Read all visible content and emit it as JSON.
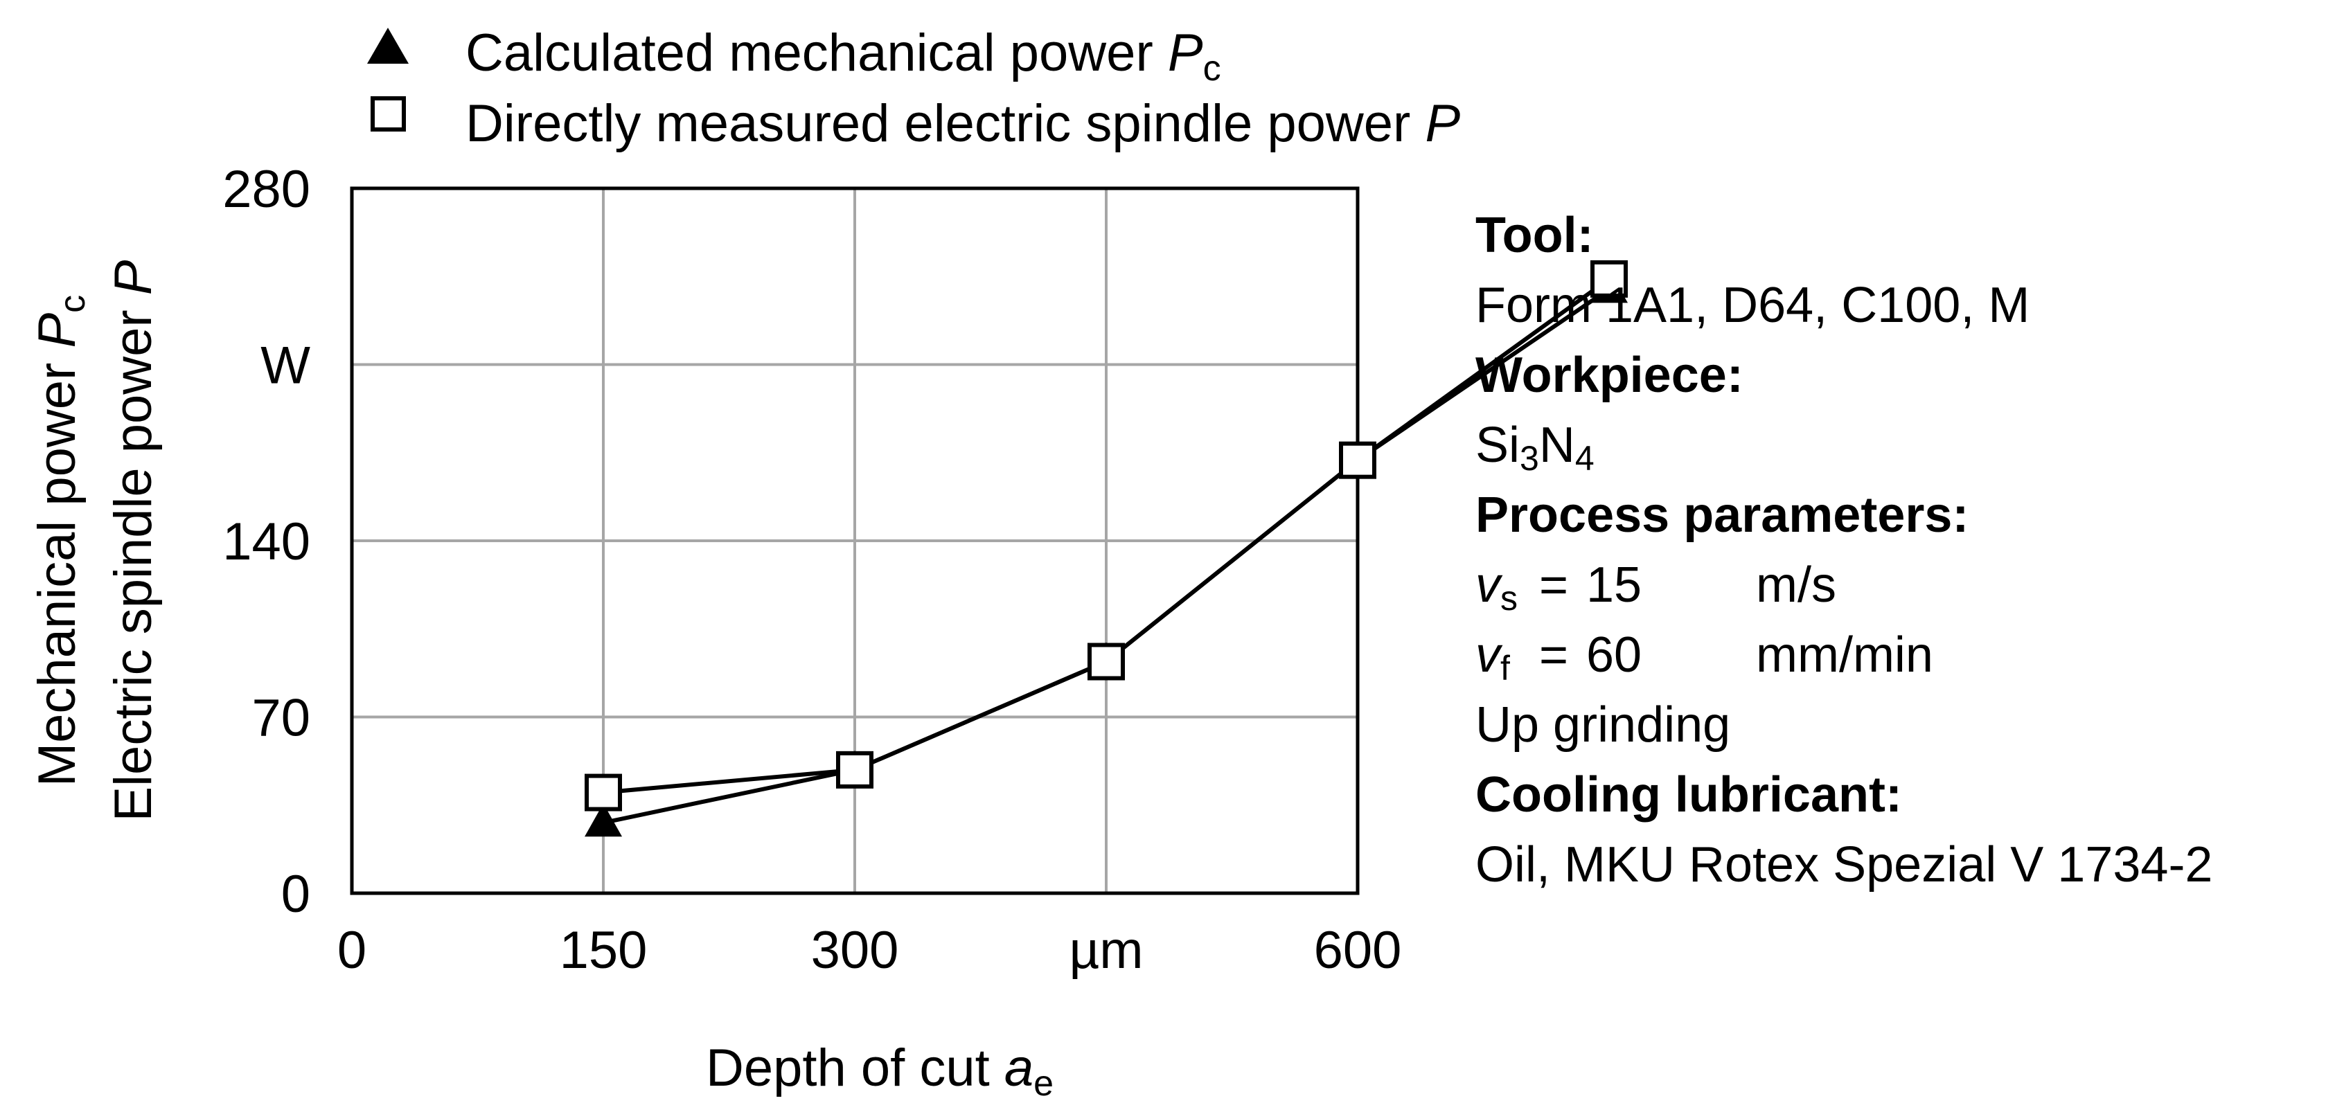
{
  "chart_data": {
    "type": "line",
    "xlabel": {
      "text": "Depth of cut ",
      "var": "a",
      "sub": "e"
    },
    "ylabel": [
      {
        "text": "Mechanical power ",
        "var": "P",
        "sub": "c"
      },
      {
        "text": "Electric spindle power ",
        "var": "P",
        "sub": ""
      }
    ],
    "xlim": [
      0,
      600
    ],
    "ylim": [
      0,
      280
    ],
    "xticks": [
      0,
      150,
      300,
      450,
      600
    ],
    "xtick_labels": [
      "0",
      "150",
      "300",
      "µm",
      "600"
    ],
    "yticks": [
      0,
      70,
      140,
      210,
      280
    ],
    "ytick_labels": [
      "0",
      "70",
      "140",
      "W",
      "280"
    ],
    "grid": true,
    "series": [
      {
        "name": "Calculated mechanical power P_c",
        "label_text": "Calculated mechanical power ",
        "label_var": "P",
        "label_sub": "c",
        "marker": "triangle-filled",
        "x": [
          150,
          300,
          450,
          600,
          750
        ],
        "y": [
          28,
          49,
          92,
          172,
          240
        ]
      },
      {
        "name": "Directly measured electric spindle power P",
        "label_text": "Directly measured electric spindle power ",
        "label_var": "P",
        "label_sub": "",
        "marker": "square-open",
        "x": [
          150,
          300,
          450,
          600,
          750
        ],
        "y": [
          40,
          49,
          92,
          172,
          244
        ]
      }
    ],
    "legend_position": "top-left"
  },
  "info": {
    "tool_heading": "Tool:",
    "tool_value": "Form 1A1, D64, C100, M",
    "workpiece_heading": "Workpiece:",
    "workpiece_a": "Si",
    "workpiece_a_sub": "3",
    "workpiece_b": "N",
    "workpiece_b_sub": "4",
    "process_heading": "Process parameters:",
    "vs_symbol": "v",
    "vs_sub": "s",
    "vs_eq": "=",
    "vs_value": "15",
    "vs_unit": "m/s",
    "vf_symbol": "v",
    "vf_sub": "f",
    "vf_eq": "=",
    "vf_value": "60",
    "vf_unit": "mm/min",
    "mode": "Up grinding",
    "cooling_heading": "Cooling lubricant:",
    "cooling_value": "Oil, MKU Rotex Spezial V 1734-2"
  }
}
